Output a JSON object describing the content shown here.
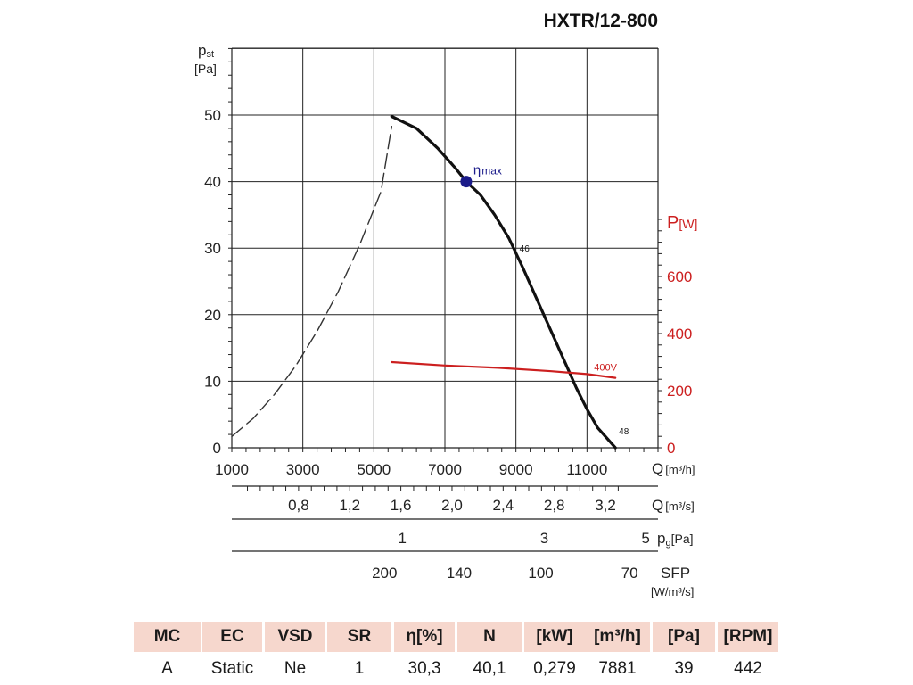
{
  "chart_data": {
    "type": "line",
    "title": "HXTR/12-800",
    "xlabel": "Q",
    "xunit": "[m³/h]",
    "ylabel": "p",
    "ylabel_sub": "st",
    "yunit": "[Pa]",
    "xlim": [
      1000,
      13000
    ],
    "ylim": [
      0,
      50
    ],
    "grid": true,
    "x_ticks": [
      "1000",
      "3000",
      "5000",
      "7000",
      "9000",
      "11000"
    ],
    "y_ticks": [
      "0",
      "10",
      "20",
      "30",
      "40",
      "50"
    ],
    "y2": {
      "label": "P",
      "unit": "[W]",
      "ticks": [
        "0",
        "200",
        "400",
        "600"
      ],
      "ylim": [
        0,
        1200
      ]
    },
    "series": [
      {
        "role": "fan-curve",
        "color": "#111111",
        "x": [
          5500,
          6200,
          6800,
          7300,
          7600,
          8000,
          8400,
          8800,
          9200,
          9700,
          10200,
          10700,
          11000,
          11300,
          11800
        ],
        "y": [
          49.8,
          48,
          45,
          42,
          40,
          38,
          35,
          31.5,
          27,
          21,
          15,
          9,
          5.8,
          3,
          0
        ]
      },
      {
        "role": "system-curve",
        "color": "#333333",
        "x": [
          1000,
          1600,
          2200,
          2800,
          3400,
          4000,
          4600,
          5200,
          5500
        ],
        "y": [
          1.7,
          4.4,
          8,
          12.3,
          17.5,
          23.5,
          30.5,
          38.5,
          48.3
        ]
      },
      {
        "name": "400V",
        "role": "power",
        "color": "#cc1f1f",
        "axis": "y2",
        "x": [
          5500,
          7000,
          8500,
          10000,
          11000,
          11800
        ],
        "y": [
          300,
          288,
          280,
          268,
          258,
          245
        ]
      }
    ],
    "annotations": [
      {
        "text": "η",
        "sub": "max",
        "x": 7600,
        "y": 40,
        "color": "#1b1b8a"
      },
      {
        "text": "46",
        "x": 9100,
        "y": 29.5
      },
      {
        "text": "48",
        "x": 11900,
        "y": 2
      },
      {
        "text": "400V",
        "x": 11200,
        "y": 11.6,
        "color": "#cc1f1f"
      }
    ],
    "secondary_scales": [
      {
        "ticks": [
          "0,8",
          "1,2",
          "1,6",
          "2,0",
          "2,4",
          "2,8",
          "3,2"
        ],
        "unit_label": "Q",
        "unit": "[m³/s]"
      },
      {
        "ticks": [
          "1",
          "3",
          "5"
        ],
        "unit_label": "p",
        "unit_sub": "g",
        "unit": "[Pa]"
      },
      {
        "ticks": [
          "200",
          "140",
          "100",
          "70"
        ],
        "unit_label": "SFP",
        "unit": "[W/m³/s]"
      }
    ]
  },
  "table": {
    "headers": [
      "MC",
      "EC",
      "VSD",
      "SR",
      "η[%]",
      "N",
      "[kW]",
      "[m³/h]",
      "[Pa]",
      "[RPM]"
    ],
    "values": [
      "A",
      "Static",
      "Ne",
      "1",
      "30,3",
      "40,1",
      "0,279",
      "7881",
      "39",
      "442"
    ]
  }
}
